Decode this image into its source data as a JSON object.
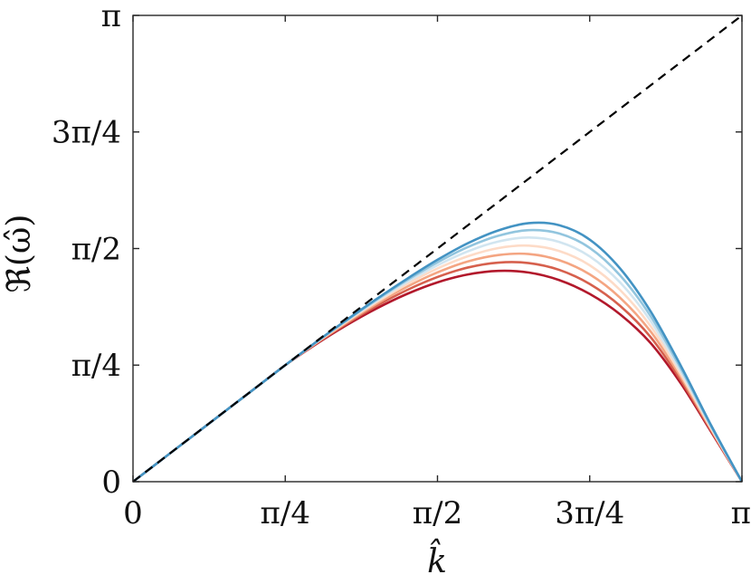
{
  "chart_data": {
    "type": "line",
    "xlabel": "k̂",
    "ylabel": "ℜ(ω̂)",
    "xlim": [
      0,
      3.14159
    ],
    "ylim": [
      0,
      3.14159
    ],
    "x_ticks": [
      0,
      0.7854,
      1.5708,
      2.3562,
      3.14159
    ],
    "x_tick_labels": [
      "0",
      "π/4",
      "π/2",
      "3π/4",
      "π"
    ],
    "y_ticks": [
      0,
      0.7854,
      1.5708,
      2.3562,
      3.14159
    ],
    "y_tick_labels": [
      "0",
      "π/4",
      "π/2",
      "3π/4",
      "π"
    ],
    "grid": false,
    "reference_line": {
      "style": "dashed",
      "color": "#000000",
      "x": [
        0,
        3.14159
      ],
      "y": [
        0,
        3.14159
      ]
    },
    "x": [
      0,
      0.1571,
      0.3142,
      0.4712,
      0.6283,
      0.7854,
      0.9425,
      1.0996,
      1.2566,
      1.4137,
      1.5708,
      1.7279,
      1.885,
      2.042,
      2.1991,
      2.3562,
      2.5133,
      2.6704,
      2.8274,
      2.9845,
      3.1416
    ],
    "series": [
      {
        "color": "#4393c3",
        "values": [
          0,
          0.157,
          0.314,
          0.471,
          0.628,
          0.785,
          0.939,
          1.088,
          1.231,
          1.367,
          1.495,
          1.607,
          1.693,
          1.742,
          1.728,
          1.631,
          1.436,
          1.147,
          0.778,
          0.375,
          0
        ]
      },
      {
        "color": "#92c5de",
        "values": [
          0,
          0.157,
          0.314,
          0.471,
          0.628,
          0.785,
          0.938,
          1.085,
          1.226,
          1.358,
          1.478,
          1.581,
          1.657,
          1.695,
          1.672,
          1.575,
          1.389,
          1.115,
          0.76,
          0.369,
          0
        ]
      },
      {
        "color": "#d1e5f0",
        "values": [
          0,
          0.157,
          0.314,
          0.471,
          0.628,
          0.785,
          0.937,
          1.082,
          1.219,
          1.346,
          1.458,
          1.552,
          1.618,
          1.645,
          1.615,
          1.518,
          1.342,
          1.083,
          0.741,
          0.362,
          0
        ]
      },
      {
        "color": "#fddbc7",
        "values": [
          0,
          0.157,
          0.314,
          0.471,
          0.628,
          0.785,
          0.935,
          1.077,
          1.21,
          1.331,
          1.436,
          1.519,
          1.574,
          1.59,
          1.554,
          1.458,
          1.291,
          1.048,
          0.721,
          0.355,
          0
        ]
      },
      {
        "color": "#f4a582",
        "values": [
          0,
          0.157,
          0.314,
          0.471,
          0.628,
          0.785,
          0.932,
          1.07,
          1.198,
          1.313,
          1.41,
          1.484,
          1.527,
          1.534,
          1.492,
          1.397,
          1.239,
          1.012,
          0.702,
          0.348,
          0
        ]
      },
      {
        "color": "#d6604d",
        "values": [
          0,
          0.157,
          0.314,
          0.471,
          0.628,
          0.785,
          0.929,
          1.062,
          1.184,
          1.291,
          1.379,
          1.443,
          1.476,
          1.473,
          1.427,
          1.332,
          1.184,
          0.974,
          0.681,
          0.34,
          0
        ]
      },
      {
        "color": "#b2182b",
        "values": [
          0,
          0.157,
          0.314,
          0.471,
          0.628,
          0.785,
          0.925,
          1.053,
          1.167,
          1.265,
          1.343,
          1.396,
          1.42,
          1.409,
          1.358,
          1.265,
          1.127,
          0.934,
          0.66,
          0.332,
          0
        ]
      }
    ]
  }
}
